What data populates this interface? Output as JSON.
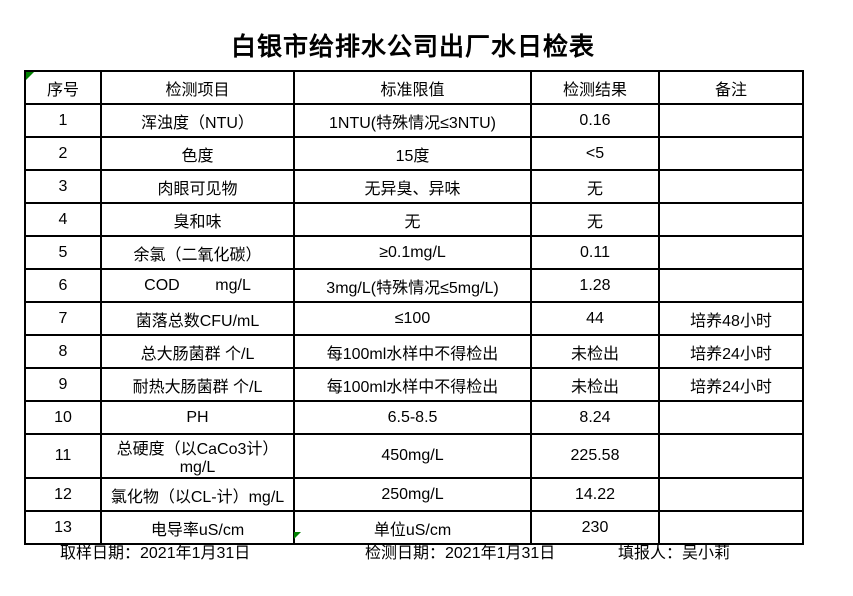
{
  "title": "白银市给排水公司出厂水日检表",
  "table": {
    "headers": [
      "序号",
      "检测项目",
      "标准限值",
      "检测结果",
      "备注"
    ],
    "rows": [
      [
        "1",
        "浑浊度（NTU）",
        "1NTU(特殊情况≤3NTU)",
        "0.16",
        ""
      ],
      [
        "2",
        "色度",
        "15度",
        "<5",
        ""
      ],
      [
        "3",
        "肉眼可见物",
        "无异臭、异味",
        "无",
        ""
      ],
      [
        "4",
        "臭和味",
        "无",
        "无",
        ""
      ],
      [
        "5",
        "余氯（二氧化碳）",
        "≥0.1mg/L",
        "0.11",
        ""
      ],
      [
        "6",
        "COD        mg/L",
        "3mg/L(特殊情况≤5mg/L)",
        "1.28",
        ""
      ],
      [
        "7",
        "菌落总数CFU/mL",
        "≤100",
        "44",
        "培养48小时"
      ],
      [
        "8",
        "总大肠菌群 个/L",
        "每100ml水样中不得检出",
        "未检出",
        "培养24小时"
      ],
      [
        "9",
        "耐热大肠菌群 个/L",
        "每100ml水样中不得检出",
        "未检出",
        "培养24小时"
      ],
      [
        "10",
        "PH",
        "6.5-8.5",
        "8.24",
        ""
      ],
      [
        "11",
        "总硬度（以CaCo3计）mg/L",
        "450mg/L",
        "225.58",
        ""
      ],
      [
        "12",
        "氯化物（以CL-计）mg/L",
        "250mg/L",
        "14.22",
        ""
      ],
      [
        "13",
        "电导率uS/cm",
        "单位uS/cm",
        "230",
        ""
      ]
    ]
  },
  "footer": {
    "sampling_date": "取样日期：2021年1月31日",
    "test_date": "检测日期：2021年1月31日",
    "reporter": "填报人：吴小莉"
  },
  "markers": {
    "indicator_color": "#008000"
  }
}
